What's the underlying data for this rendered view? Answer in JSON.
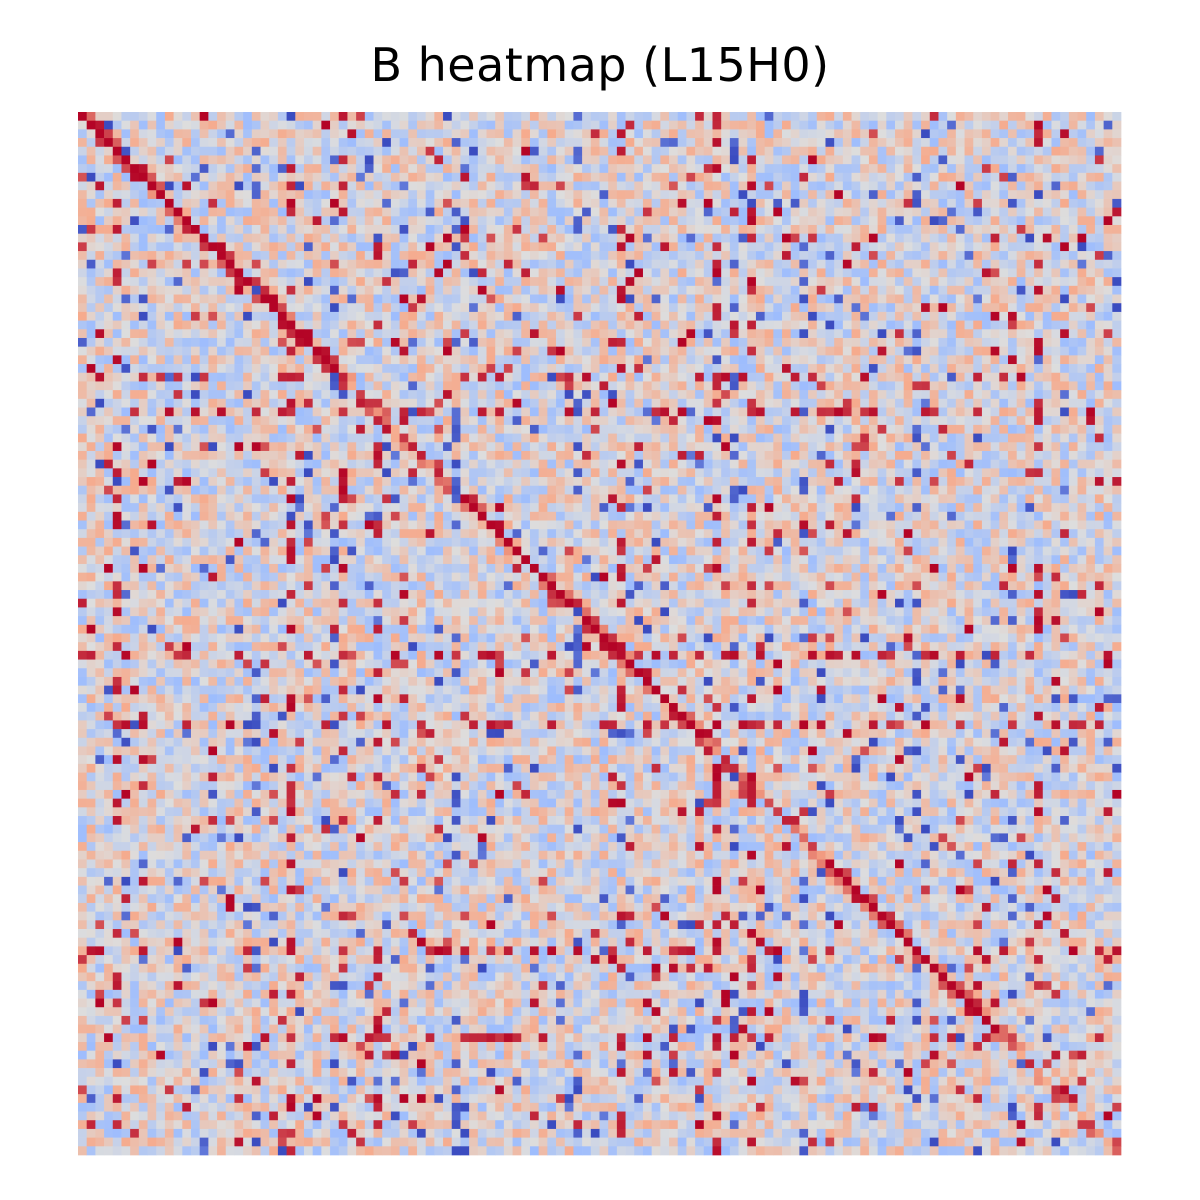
{
  "chart_data": {
    "type": "heatmap",
    "title": "B heatmap (L15H0)",
    "xlabel": "",
    "ylabel": "",
    "grid": false,
    "colormap": "coolwarm",
    "colormap_stops": [
      "#3b4cc0",
      "#9abbff",
      "#dddddd",
      "#f7a889",
      "#b40426"
    ],
    "rows": 120,
    "cols": 120,
    "value_range": [
      -1,
      1
    ],
    "structure": {
      "diagonal_segments": [
        {
          "from": 0,
          "to": 10,
          "strength": 1.0
        },
        {
          "from": 10,
          "to": 22,
          "strength": 0.75
        },
        {
          "from": 22,
          "to": 30,
          "strength": 0.8
        },
        {
          "from": 44,
          "to": 60,
          "strength": 1.0
        },
        {
          "from": 60,
          "to": 72,
          "strength": 0.85
        },
        {
          "from": 72,
          "to": 86,
          "strength": 0.4
        },
        {
          "from": 86,
          "to": 95,
          "strength": 0.85
        },
        {
          "from": 95,
          "to": 106,
          "strength": 0.8
        },
        {
          "from": 106,
          "to": 120,
          "strength": 0.6
        }
      ],
      "strong_rows": [
        30,
        34,
        62,
        70,
        96,
        106
      ],
      "strong_cols": [
        4,
        24,
        30,
        34,
        62,
        73,
        77,
        110
      ],
      "blue_cols": [
        20,
        29,
        43,
        57,
        75,
        83,
        96,
        107
      ]
    }
  }
}
